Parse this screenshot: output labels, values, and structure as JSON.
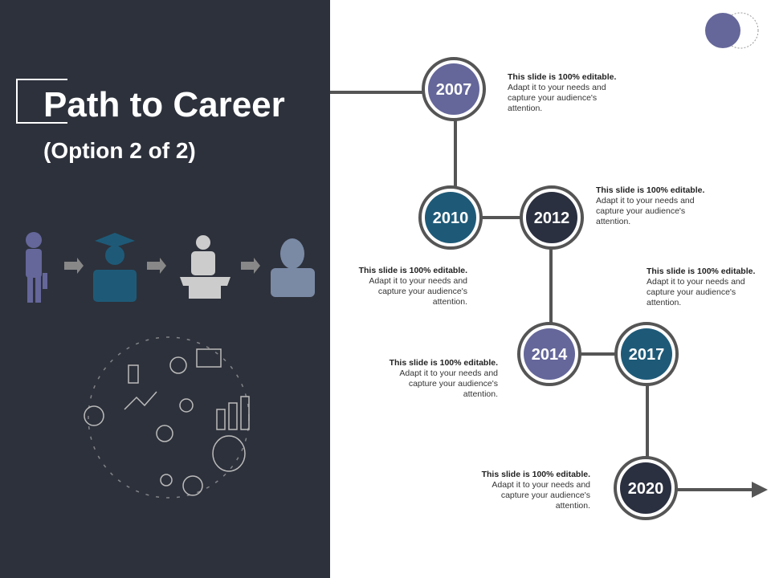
{
  "title": "Path to Career",
  "subtitle": "(Option 2 of 2)",
  "colors": {
    "panel": "#2d313b",
    "purple": "#65679a",
    "teal": "#1e5a78",
    "dark": "#2b3040",
    "ring": "#555555"
  },
  "career_icons": [
    "doctor-icon",
    "graduate-icon",
    "speaker-icon",
    "businessman-icon"
  ],
  "milestones": [
    {
      "year": "2007",
      "heading": "This slide is 100% editable.",
      "body": "Adapt it to your needs and capture your audience's attention."
    },
    {
      "year": "2010",
      "heading": "This slide is 100% editable.",
      "body": "Adapt it to your needs and capture your audience's attention."
    },
    {
      "year": "2012",
      "heading": "This slide is 100% editable.",
      "body": "Adapt it to your needs and capture your audience's attention."
    },
    {
      "year": "2014",
      "heading": "This slide is 100% editable.",
      "body": "Adapt it to your needs and capture your audience's attention."
    },
    {
      "year": "2017",
      "heading": "This slide is 100% editable.",
      "body": "Adapt it to your needs and capture your audience's attention."
    },
    {
      "year": "2020",
      "heading": "This slide is 100% editable.",
      "body": "Adapt it to your needs and capture your audience's attention."
    }
  ]
}
